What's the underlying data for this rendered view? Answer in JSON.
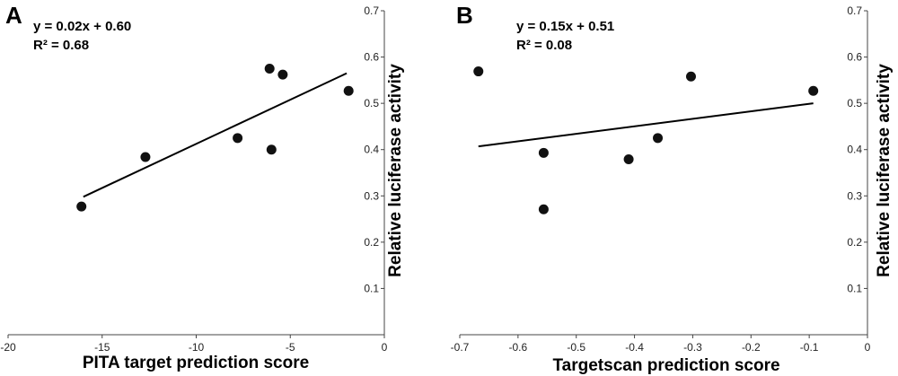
{
  "chart_data": [
    {
      "type": "scatter",
      "panel": "A",
      "equation": "y = 0.02x + 0.60",
      "r_squared": "R² = 0.68",
      "xlabel": "PITA target prediction score",
      "ylabel": "Relative luciferase activity",
      "xlim": [
        -20,
        0
      ],
      "ylim": [
        0,
        0.7
      ],
      "xticks": [
        -20,
        -15,
        -10,
        -5,
        0
      ],
      "xtick_labels": [
        "-20",
        "-15",
        "-10",
        "-5",
        "0"
      ],
      "yticks": [
        0.1,
        0.2,
        0.3,
        0.4,
        0.5,
        0.6,
        0.7
      ],
      "ytick_labels": [
        "0.1",
        "0.2",
        "0.3",
        "0.4",
        "0.5",
        "0.6",
        "0.7"
      ],
      "y_axis_side": "right",
      "grid": false,
      "points": [
        {
          "x": -16.1,
          "y": 0.277
        },
        {
          "x": -12.7,
          "y": 0.384
        },
        {
          "x": -7.8,
          "y": 0.425
        },
        {
          "x": -6.1,
          "y": 0.575
        },
        {
          "x": -5.4,
          "y": 0.562
        },
        {
          "x": -6.0,
          "y": 0.4
        },
        {
          "x": -1.9,
          "y": 0.527
        }
      ],
      "trendline": {
        "x": [
          -16.0,
          -2.0
        ],
        "y": [
          0.298,
          0.565
        ]
      }
    },
    {
      "type": "scatter",
      "panel": "B",
      "equation": "y = 0.15x + 0.51",
      "r_squared": "R² = 0.08",
      "xlabel": "Targetscan prediction score",
      "ylabel": "Relative luciferase activity",
      "xlim": [
        -0.7,
        0
      ],
      "ylim": [
        0,
        0.7
      ],
      "xticks": [
        -0.7,
        -0.6,
        -0.5,
        -0.4,
        -0.3,
        -0.2,
        -0.1,
        0
      ],
      "xtick_labels": [
        "-0.7",
        "-0.6",
        "-0.5",
        "-0.4",
        "-0.3",
        "-0.2",
        "-0.1",
        "0"
      ],
      "yticks": [
        0.1,
        0.2,
        0.3,
        0.4,
        0.5,
        0.6,
        0.7
      ],
      "ytick_labels": [
        "0.1",
        "0.2",
        "0.3",
        "0.4",
        "0.5",
        "0.6",
        "0.7"
      ],
      "y_axis_side": "right",
      "grid": false,
      "points": [
        {
          "x": -0.668,
          "y": 0.569
        },
        {
          "x": -0.556,
          "y": 0.393
        },
        {
          "x": -0.556,
          "y": 0.271
        },
        {
          "x": -0.41,
          "y": 0.379
        },
        {
          "x": -0.36,
          "y": 0.425
        },
        {
          "x": -0.303,
          "y": 0.558
        },
        {
          "x": -0.093,
          "y": 0.527
        }
      ],
      "trendline": {
        "x": [
          -0.668,
          -0.093
        ],
        "y": [
          0.407,
          0.5
        ]
      }
    }
  ]
}
